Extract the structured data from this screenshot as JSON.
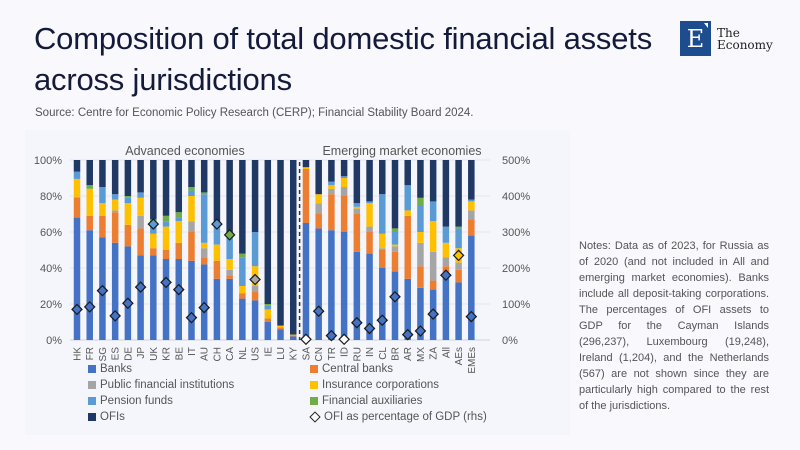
{
  "header": {
    "title": "Composition of total domestic financial assets across jurisdictions",
    "source": "Source: Centre for Economic Policy Research (CERP); Financial Stability Board 2024."
  },
  "logo": {
    "letter": "E",
    "line1": "The",
    "line2": "Economy"
  },
  "notes": "Notes: Data as of 2023, for Russia as of 2020 (and not included in All and emerging market economies). Banks include all deposit-taking corporations. The percentages of OFI assets to GDP for the Cayman Islands (296,237), Luxembourg (19,248), Ireland (1,204), and the Netherlands (567) are not shown since they are particularly high compared to the rest of the jurisdictions.",
  "chart_data": {
    "type": "bar",
    "stacked": true,
    "title": "",
    "group_labels": [
      "Advanced economies",
      "Emerging market economies"
    ],
    "categories": [
      "HK",
      "FR",
      "SG",
      "ES",
      "DE",
      "JP",
      "UK",
      "KR",
      "BE",
      "IT",
      "AU",
      "CH",
      "CA",
      "NL",
      "US",
      "IE",
      "LU",
      "KY",
      "SA",
      "CN",
      "TR",
      "ID",
      "RU",
      "IN",
      "CL",
      "BR",
      "AR",
      "MX",
      "ZA",
      "All",
      "AEs",
      "EMEs"
    ],
    "groups": [
      {
        "name": "Advanced economies",
        "categories": [
          "HK",
          "FR",
          "SG",
          "ES",
          "DE",
          "JP",
          "UK",
          "KR",
          "BE",
          "IT",
          "AU",
          "CH",
          "CA",
          "NL",
          "US",
          "IE",
          "LU",
          "KY"
        ]
      },
      {
        "name": "Emerging market economies",
        "categories": [
          "SA",
          "CN",
          "TR",
          "ID",
          "RU",
          "IN",
          "CL",
          "BR",
          "AR",
          "MX",
          "ZA",
          "All",
          "AEs",
          "EMEs"
        ]
      }
    ],
    "y_left": {
      "label": "",
      "ylim": [
        0,
        100
      ],
      "ticks": [
        "0%",
        "20%",
        "40%",
        "60%",
        "80%",
        "100%"
      ]
    },
    "y_right": {
      "label": "",
      "ylim": [
        0,
        500
      ],
      "ticks": [
        "0%",
        "100%",
        "200%",
        "300%",
        "400%",
        "500%"
      ]
    },
    "series": [
      {
        "name": "Banks",
        "color": "#4472c4",
        "values": [
          68,
          61,
          57,
          54,
          52,
          47,
          47,
          45,
          45,
          44,
          42,
          34,
          34,
          23,
          22,
          10,
          6,
          2,
          65,
          62,
          61,
          60,
          49,
          48,
          40,
          38,
          34,
          29,
          28,
          35,
          32,
          58
        ]
      },
      {
        "name": "Central banks",
        "color": "#ed7d31",
        "values": [
          11,
          8,
          12,
          17,
          12,
          15,
          4,
          5,
          9,
          16,
          4,
          10,
          2,
          3,
          5,
          2,
          1,
          0.5,
          30,
          8,
          20,
          20,
          21,
          12,
          10,
          11,
          35,
          12,
          5,
          6,
          7,
          9
        ]
      },
      {
        "name": "Public financial institutions",
        "color": "#a5a5a5",
        "values": [
          0.5,
          0,
          0,
          1,
          0,
          7,
          0,
          0,
          0,
          6,
          5,
          0,
          3,
          0,
          3,
          0,
          0,
          0,
          0,
          6,
          3,
          5,
          3,
          3,
          1,
          3,
          0,
          13,
          16,
          5,
          4,
          5
        ]
      },
      {
        "name": "Insurance corporations",
        "color": "#ffc000",
        "values": [
          10,
          15,
          7,
          6,
          12,
          10,
          8,
          13,
          12,
          14,
          3,
          9,
          6,
          4,
          11,
          5,
          1,
          0.5,
          1,
          5,
          2,
          5,
          1,
          13,
          8,
          1,
          3,
          6,
          17,
          8,
          8,
          5
        ]
      },
      {
        "name": "Pension funds",
        "color": "#5b9bd5",
        "values": [
          4,
          0,
          9,
          3,
          3,
          3,
          7,
          3,
          2,
          3,
          27,
          12,
          12,
          16,
          19,
          2,
          0,
          0,
          0,
          0,
          2,
          1,
          2,
          1,
          22,
          7,
          14,
          15,
          11,
          9,
          11,
          1
        ]
      },
      {
        "name": "Financial auxiliaries",
        "color": "#70ad47",
        "values": [
          0,
          2,
          0,
          0,
          1,
          0,
          1,
          3,
          3,
          2,
          1,
          0,
          1,
          2,
          0,
          1,
          0,
          0,
          0,
          0,
          0,
          0,
          0,
          0,
          0,
          2,
          0,
          4,
          0,
          0,
          1,
          0
        ]
      },
      {
        "name": "OFIs",
        "color": "#203864",
        "values": [
          6.5,
          14,
          15,
          19,
          20,
          18,
          33,
          31,
          29,
          15,
          18,
          35,
          42,
          52,
          40,
          80,
          92,
          97,
          4,
          19,
          12,
          9,
          24,
          23,
          19,
          38,
          14,
          21,
          23,
          37,
          37,
          22
        ]
      }
    ],
    "markers": {
      "name": "OFI as percentage of GDP (rhs)",
      "axis": "right",
      "values": [
        85,
        92,
        137,
        67,
        102,
        147,
        322,
        160,
        140,
        62,
        90,
        322,
        292,
        null,
        168,
        null,
        null,
        null,
        2,
        80,
        12,
        2,
        48,
        32,
        55,
        120,
        15,
        25,
        72,
        180,
        235,
        65
      ],
      "fill_colors": [
        "#4472c4",
        "#4472c4",
        "#4472c4",
        "#4472c4",
        "#4472c4",
        "#4472c4",
        "#5b9bd5",
        "#4472c4",
        "#4472c4",
        "#4472c4",
        "#4472c4",
        "#5b9bd5",
        "#70ad47",
        null,
        "#a5a5a5",
        null,
        null,
        null,
        "#ffffff",
        "#4472c4",
        "#4472c4",
        "#ffffff",
        "#4472c4",
        "#4472c4",
        "#4472c4",
        "#4472c4",
        "#4472c4",
        "#4472c4",
        "#4472c4",
        "#4472c4",
        "#ffc000",
        "#4472c4"
      ]
    },
    "legend": {
      "placement": "bottom",
      "items": [
        {
          "label": "Banks",
          "color": "#4472c4",
          "shape": "square"
        },
        {
          "label": "Central banks",
          "color": "#ed7d31",
          "shape": "square"
        },
        {
          "label": "Public financial institutions",
          "color": "#a5a5a5",
          "shape": "square"
        },
        {
          "label": "Insurance corporations",
          "color": "#ffc000",
          "shape": "square"
        },
        {
          "label": "Pension funds",
          "color": "#5b9bd5",
          "shape": "square"
        },
        {
          "label": "Financial auxiliaries",
          "color": "#70ad47",
          "shape": "square"
        },
        {
          "label": "OFIs",
          "color": "#203864",
          "shape": "square"
        },
        {
          "label": "OFI as percentage of GDP (rhs)",
          "color": "#ffffff",
          "shape": "diamond"
        }
      ]
    },
    "grid": true,
    "separator_after": "KY"
  }
}
